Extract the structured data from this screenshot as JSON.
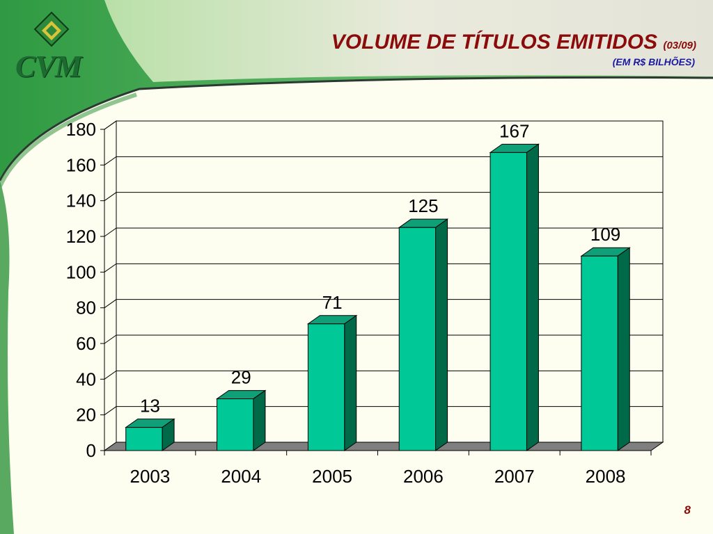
{
  "slide": {
    "title": "VOLUME DE TÍTULOS EMITIDOS",
    "title_date": "(03/09)",
    "subtitle": "(EM R$ BILHÕES)",
    "logo_text": "CVM",
    "page_number": "8"
  },
  "colors": {
    "bar_front": "#00c896",
    "bar_top": "#10a078",
    "bar_side": "#006a48",
    "title": "#8b0a0a",
    "subtitle": "#1a1aa0",
    "brand_green": "#1d6b30"
  },
  "chart_data": {
    "type": "bar",
    "categories": [
      "2003",
      "2004",
      "2005",
      "2006",
      "2007",
      "2008"
    ],
    "values": [
      13,
      29,
      71,
      125,
      167,
      109
    ],
    "data_labels": [
      "13",
      "29",
      "71",
      "125",
      "167",
      "109"
    ],
    "ylim": [
      0,
      180
    ],
    "yticks": [
      0,
      20,
      40,
      60,
      80,
      100,
      120,
      140,
      160,
      180
    ],
    "grid": true,
    "three_d": true
  }
}
